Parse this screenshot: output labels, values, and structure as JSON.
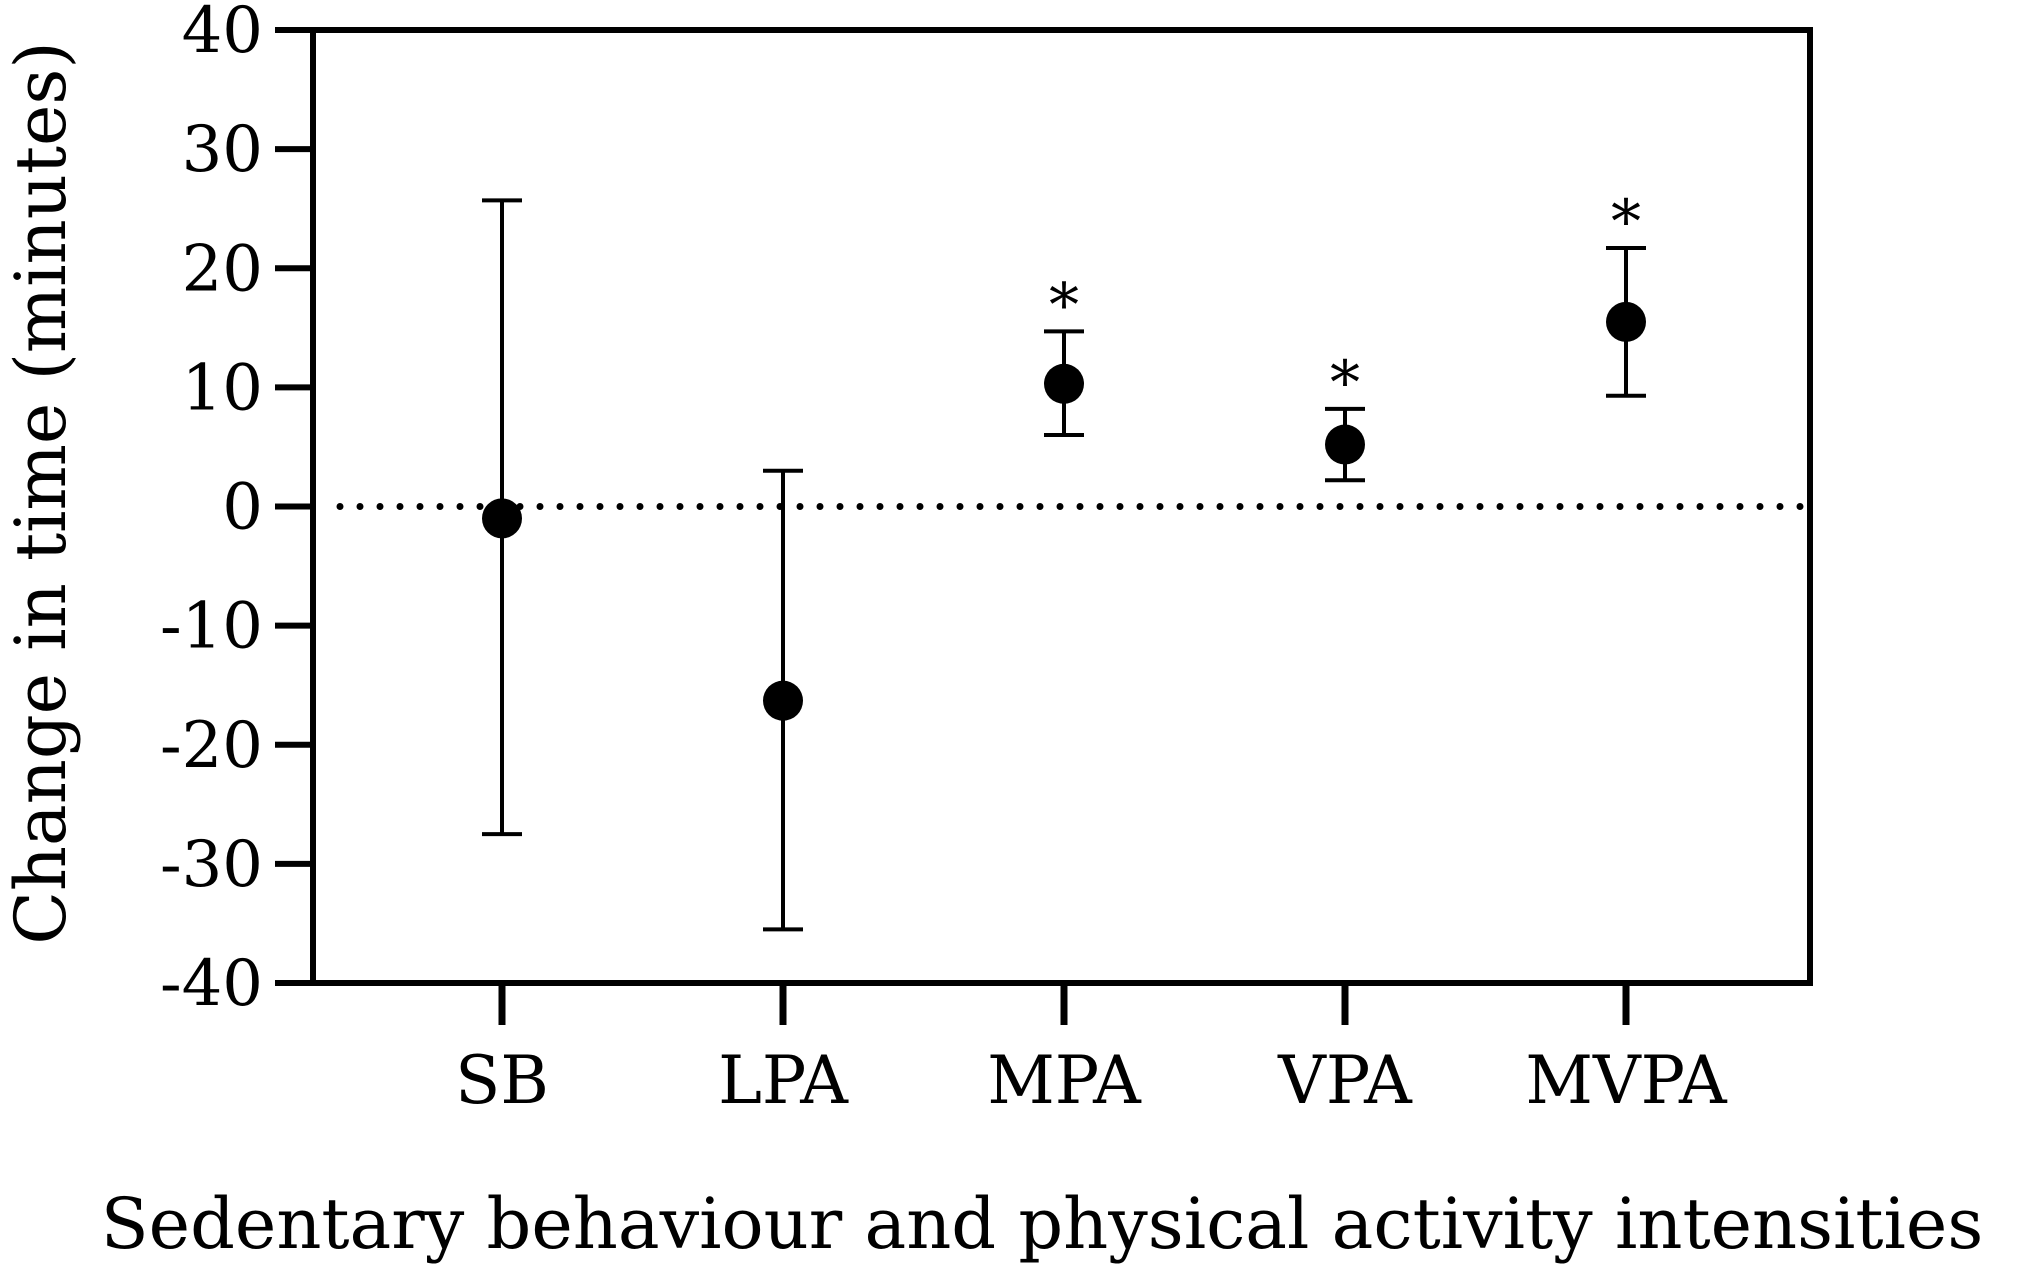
{
  "chart_data": {
    "type": "scatter",
    "title": "",
    "xlabel": "Sedentary behaviour and physical activity intensities",
    "ylabel": "Change in time (minutes)",
    "categories": [
      "SB",
      "LPA",
      "MPA",
      "VPA",
      "MVPA"
    ],
    "values": [
      -1,
      -16.3,
      10.3,
      5.2,
      15.5
    ],
    "ci_lower": [
      -27.5,
      -35.5,
      6.0,
      2.2,
      9.3
    ],
    "ci_upper": [
      25.7,
      3.0,
      14.7,
      8.2,
      21.7
    ],
    "significant": [
      false,
      false,
      true,
      true,
      true
    ],
    "significance_marker": "*",
    "ylim": [
      -40,
      40
    ],
    "yticks": [
      40,
      30,
      20,
      10,
      0,
      -10,
      -20,
      -30,
      -40
    ],
    "reference_line": {
      "y": 0,
      "style": "dotted"
    },
    "grid": false,
    "legend": "none",
    "colors": {
      "marker": "#000000",
      "axis": "#000000"
    }
  }
}
